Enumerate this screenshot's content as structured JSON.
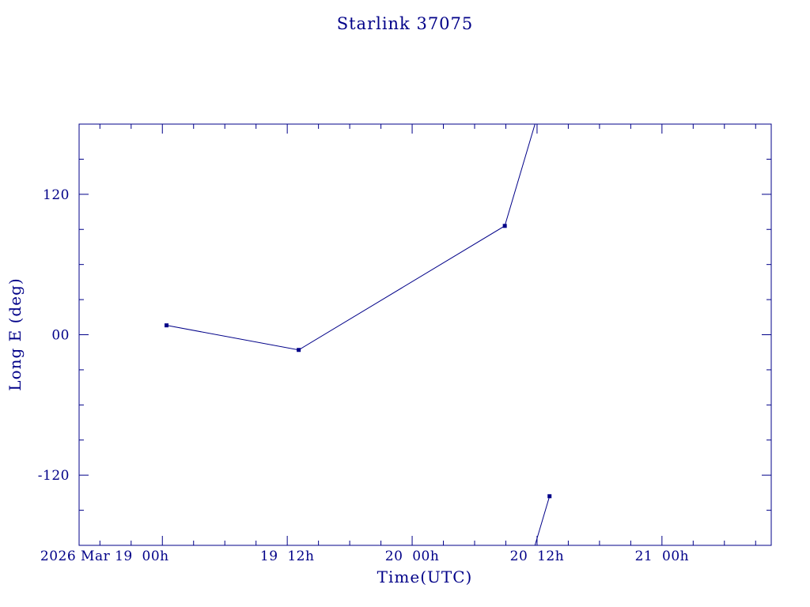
{
  "page": {
    "background": "#ffffff",
    "accent_color": "#000088"
  },
  "chart_data": {
    "type": "line",
    "title": "Starlink 37075",
    "xlabel": "Time(UTC)",
    "ylabel": "Long E (deg)",
    "grid": false,
    "legend": "none",
    "axis_color": "#000088",
    "wrap_at": 180,
    "x_axis": {
      "unit": "hours since 2026 Mar 19 00:00 UTC",
      "lim": [
        -8,
        58.5
      ],
      "major_ticks": [
        0,
        12,
        24,
        36,
        48
      ],
      "tick_labels": [
        "2026 Mar 19  00h",
        "19  12h",
        "20  00h",
        "20  12h",
        "21  00h"
      ],
      "label_dx": [
        -73,
        0,
        0,
        0,
        0
      ],
      "minor_step": 3
    },
    "y_axis": {
      "lim": [
        -180,
        180
      ],
      "major_ticks": [
        -120,
        0,
        120
      ],
      "tick_labels": [
        "-120",
        "00",
        "120"
      ],
      "minor_step": 30
    },
    "series": [
      {
        "name": "Long E",
        "color": "#000088",
        "marker": "square",
        "points": [
          {
            "utc": "2026 Mar 19 ~00:25",
            "t_hours": 0.4,
            "long_e_deg": 8
          },
          {
            "utc": "2026 Mar 19 ~13:05",
            "t_hours": 13.1,
            "long_e_deg": -13
          },
          {
            "utc": "2026 Mar 20 ~08:55",
            "t_hours": 32.9,
            "long_e_deg": 93
          },
          {
            "utc": "2026 Mar 20 ~13:15",
            "t_hours": 37.2,
            "long_e_deg": -138
          }
        ]
      }
    ]
  }
}
